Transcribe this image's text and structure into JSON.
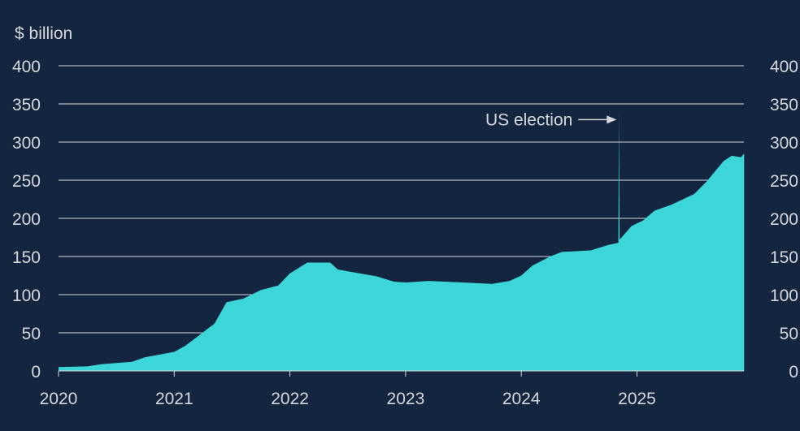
{
  "chart_data": {
    "type": "area",
    "ylabel": "$ billion",
    "ylim": [
      0,
      400
    ],
    "yticks": [
      0,
      50,
      100,
      150,
      200,
      250,
      300,
      350,
      400
    ],
    "xticks": [
      "2020",
      "2021",
      "2022",
      "2023",
      "2024",
      "2025"
    ],
    "grid": true,
    "colors": {
      "background": "#13253f",
      "fill": "#3cd6d9",
      "text": "#d4d8dd",
      "grid": "#d4d8dd"
    },
    "annotation": {
      "text": "US election",
      "date": "2024-11-05",
      "value": 340
    },
    "points": [
      [
        "2020-01-01",
        5
      ],
      [
        "2020-04-01",
        6
      ],
      [
        "2020-05-20",
        9
      ],
      [
        "2020-08-20",
        12
      ],
      [
        "2020-10-01",
        18
      ],
      [
        "2021-01-01",
        25
      ],
      [
        "2021-02-05",
        33
      ],
      [
        "2021-03-15",
        45
      ],
      [
        "2021-05-08",
        62
      ],
      [
        "2021-06-15",
        90
      ],
      [
        "2021-08-08",
        95
      ],
      [
        "2021-10-01",
        106
      ],
      [
        "2021-11-25",
        112
      ],
      [
        "2022-01-01",
        128
      ],
      [
        "2022-02-25",
        142
      ],
      [
        "2022-05-08",
        142
      ],
      [
        "2022-06-01",
        133
      ],
      [
        "2022-08-08",
        128
      ],
      [
        "2022-10-01",
        124
      ],
      [
        "2022-11-25",
        117
      ],
      [
        "2023-01-01",
        116
      ],
      [
        "2023-03-15",
        118
      ],
      [
        "2023-07-01",
        116
      ],
      [
        "2023-10-01",
        114
      ],
      [
        "2023-11-25",
        118
      ],
      [
        "2024-01-01",
        125
      ],
      [
        "2024-02-05",
        138
      ],
      [
        "2024-04-01",
        150
      ],
      [
        "2024-05-08",
        156
      ],
      [
        "2024-08-08",
        158
      ],
      [
        "2024-10-01",
        165
      ],
      [
        "2024-11-03",
        168
      ],
      [
        "2024-11-05",
        340
      ],
      [
        "2024-11-07",
        172
      ],
      [
        "2024-12-15",
        190
      ],
      [
        "2025-01-20",
        197
      ],
      [
        "2025-02-25",
        210
      ],
      [
        "2025-04-20",
        218
      ],
      [
        "2025-07-01",
        232
      ],
      [
        "2025-08-08",
        248
      ],
      [
        "2025-10-01",
        275
      ],
      [
        "2025-10-27",
        282
      ],
      [
        "2025-11-25",
        280
      ],
      [
        "2025-12-05",
        285
      ]
    ]
  }
}
